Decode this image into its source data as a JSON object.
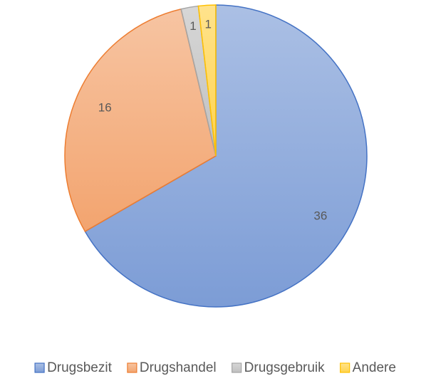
{
  "chart_data": {
    "type": "pie",
    "categories": [
      "Drugsbezit",
      "Drugshandel",
      "Drugsgebruik",
      "Andere"
    ],
    "values": [
      36,
      16,
      1,
      1
    ],
    "colors": [
      "#4472c4",
      "#ed7d31",
      "#a5a5a5",
      "#ffc000"
    ],
    "legend": "bottom"
  }
}
